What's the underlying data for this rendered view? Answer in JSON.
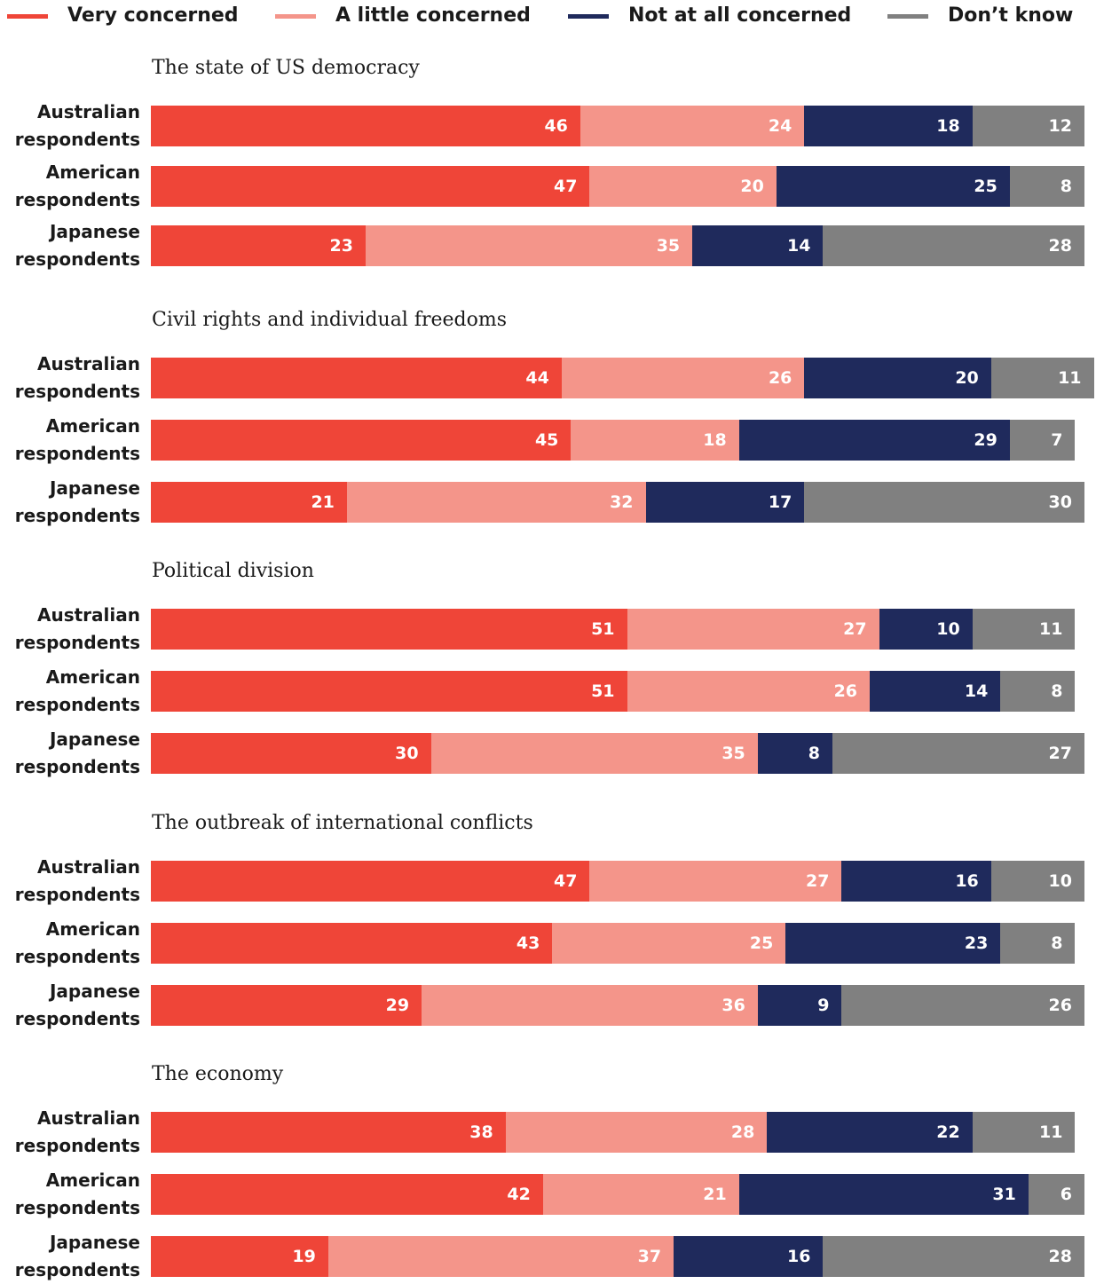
{
  "chart_data": {
    "type": "bar",
    "orientation": "horizontal",
    "stacked": true,
    "xlim": [
      0,
      100
    ],
    "facets": [
      "The state of US democracy",
      "Civil rights and individual freedoms",
      "Political division",
      "The outbreak of international conflicts",
      "The economy"
    ],
    "categories": [
      [
        "Australian respondents",
        "American respondents",
        "Japanese respondents"
      ],
      [
        "Australian respondents",
        "American respondents",
        "Japanese respondents"
      ],
      [
        "Australian respondents",
        "American respondents",
        "Japanese respondents"
      ],
      [
        "Australian respondents",
        "American respondents",
        "Japanese respondents"
      ],
      [
        "Australian respondents",
        "American respondents",
        "Japanese respondents"
      ]
    ],
    "series": [
      {
        "name": "Very concerned",
        "color": "#ef4538",
        "values": [
          [
            46,
            47,
            23
          ],
          [
            44,
            45,
            21
          ],
          [
            51,
            51,
            30
          ],
          [
            47,
            43,
            29
          ],
          [
            38,
            42,
            19
          ]
        ]
      },
      {
        "name": "A little concerned",
        "color": "#f4958a",
        "values": [
          [
            24,
            20,
            35
          ],
          [
            26,
            18,
            32
          ],
          [
            27,
            26,
            35
          ],
          [
            27,
            25,
            36
          ],
          [
            28,
            21,
            37
          ]
        ]
      },
      {
        "name": "Not at all concerned",
        "color": "#1f2a5c",
        "values": [
          [
            18,
            25,
            14
          ],
          [
            20,
            29,
            17
          ],
          [
            10,
            14,
            8
          ],
          [
            16,
            23,
            9
          ],
          [
            22,
            31,
            16
          ]
        ]
      },
      {
        "name": "Don’t know",
        "color": "#808080",
        "values": [
          [
            12,
            8,
            28
          ],
          [
            11,
            7,
            30
          ],
          [
            11,
            8,
            27
          ],
          [
            10,
            8,
            26
          ],
          [
            11,
            6,
            28
          ]
        ]
      }
    ]
  }
}
